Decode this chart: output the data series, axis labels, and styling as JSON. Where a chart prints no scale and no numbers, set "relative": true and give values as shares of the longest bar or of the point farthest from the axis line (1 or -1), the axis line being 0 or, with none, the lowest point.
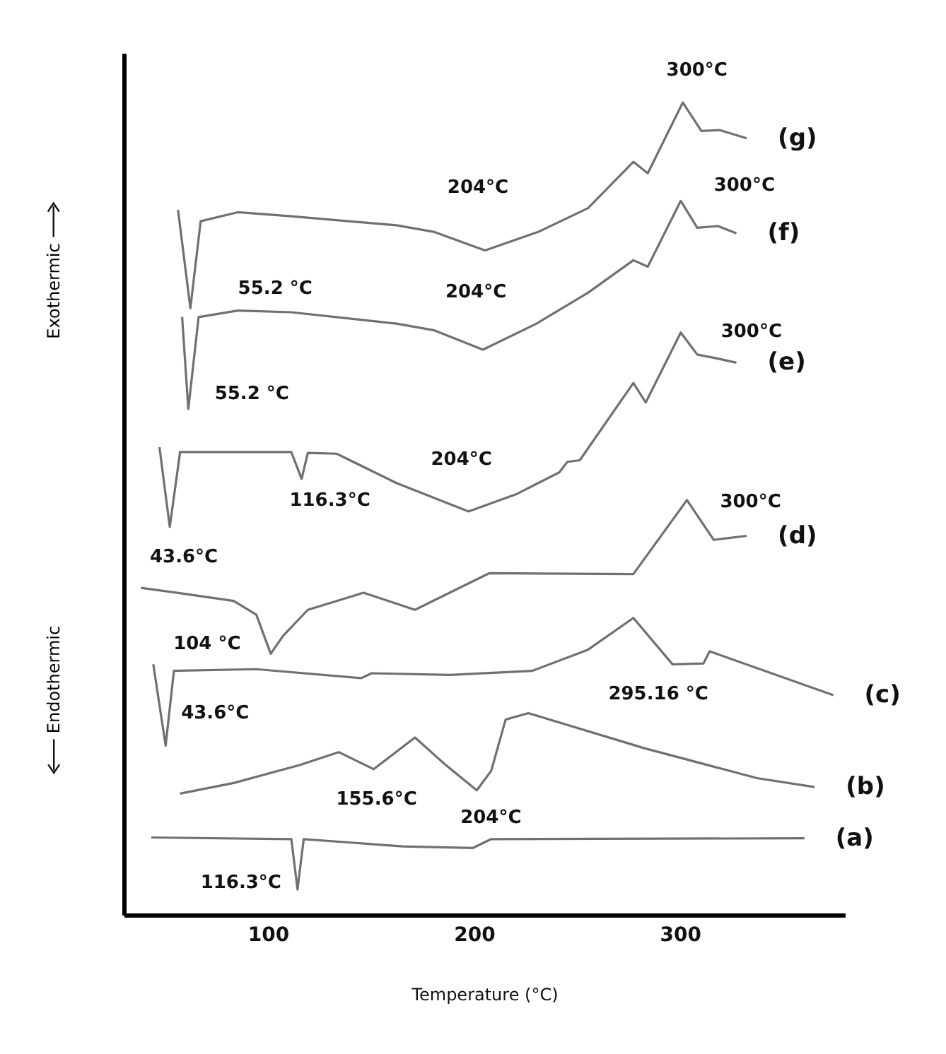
{
  "chart_data": {
    "type": "line",
    "relative": true,
    "xlabel": "Temperature (°C)",
    "xlim": [
      30,
      380
    ],
    "xticks": [
      100,
      200,
      300
    ],
    "tick_labels": "x",
    "grid": false,
    "legend": false,
    "line_style": "solid",
    "series": [
      {
        "name": "(g)",
        "color": "#707070",
        "x": [
          56,
          62,
          67,
          85,
          111,
          162,
          180,
          205,
          231,
          255,
          277,
          284,
          301,
          310,
          319,
          332
        ],
        "values": [
          0.868,
          0.747,
          0.854,
          0.865,
          0.86,
          0.849,
          0.841,
          0.818,
          0.841,
          0.87,
          0.927,
          0.913,
          1,
          0.965,
          0.966,
          0.956
        ]
      },
      {
        "name": "(f)",
        "color": "#707070",
        "x": [
          58,
          61,
          66,
          85,
          111,
          162,
          180,
          204,
          230,
          255,
          277,
          284,
          300,
          308,
          318,
          327
        ],
        "values": [
          0.736,
          0.623,
          0.736,
          0.744,
          0.742,
          0.728,
          0.72,
          0.696,
          0.728,
          0.766,
          0.806,
          0.798,
          0.879,
          0.846,
          0.848,
          0.839
        ]
      },
      {
        "name": "(e)",
        "color": "#707070",
        "x": [
          47,
          52,
          57,
          111,
          116,
          119,
          133,
          162,
          197,
          220,
          241,
          245,
          251,
          277,
          283,
          300,
          308,
          318,
          327
        ],
        "values": [
          0.576,
          0.478,
          0.57,
          0.57,
          0.537,
          0.569,
          0.568,
          0.532,
          0.497,
          0.518,
          0.545,
          0.558,
          0.56,
          0.655,
          0.631,
          0.717,
          0.69,
          0.685,
          0.68
        ]
      },
      {
        "name": "(d)",
        "color": "#707070",
        "x": [
          38,
          61,
          83,
          94,
          101,
          107,
          119,
          146,
          171,
          207,
          277,
          303,
          316,
          332
        ],
        "values": [
          0.403,
          0.395,
          0.387,
          0.37,
          0.322,
          0.344,
          0.376,
          0.397,
          0.376,
          0.421,
          0.42,
          0.511,
          0.462,
          0.467
        ]
      },
      {
        "name": "(c)",
        "color": "#707070",
        "x": [
          44,
          50,
          54,
          94,
          145,
          150,
          188,
          228,
          255,
          277,
          296,
          311,
          314,
          374
        ],
        "values": [
          0.309,
          0.209,
          0.301,
          0.303,
          0.292,
          0.298,
          0.296,
          0.301,
          0.327,
          0.366,
          0.309,
          0.31,
          0.325,
          0.271
        ]
      },
      {
        "name": "(b)",
        "color": "#707070",
        "x": [
          57,
          83,
          115,
          134,
          151,
          171,
          186,
          201,
          208,
          215,
          226,
          282,
          337,
          365
        ],
        "values": [
          0.15,
          0.163,
          0.185,
          0.201,
          0.18,
          0.219,
          0.185,
          0.154,
          0.178,
          0.241,
          0.249,
          0.206,
          0.169,
          0.158
        ]
      },
      {
        "name": "(a)",
        "color": "#707070",
        "x": [
          43,
          111,
          114,
          117,
          165,
          199,
          208,
          360
        ],
        "values": [
          0.096,
          0.094,
          0.032,
          0.094,
          0.085,
          0.083,
          0.094,
          0.095
        ]
      }
    ],
    "annotations": [
      "Exothermic",
      "Endothermic",
      {
        "text": "300°C",
        "x": 301,
        "y": 1
      },
      {
        "text": "204°C",
        "x": 205,
        "y": 0.818
      },
      {
        "text": "55.2 °C",
        "x": 62,
        "y": 0.747
      },
      {
        "text": "300°C",
        "x": 300,
        "y": 0.879
      },
      {
        "text": "204°C",
        "x": 204,
        "y": 0.696
      },
      {
        "text": "55.2 °C",
        "x": 61,
        "y": 0.623
      },
      {
        "text": "300°C",
        "x": 300,
        "y": 0.717
      },
      {
        "text": "116.3°C",
        "x": 116,
        "y": 0.537
      },
      {
        "text": "204°C",
        "x": 197,
        "y": 0.497
      },
      {
        "text": "43.6°C",
        "x": 52,
        "y": 0.478
      },
      {
        "text": "300°C",
        "x": 303,
        "y": 0.511
      },
      {
        "text": "104 °C",
        "x": 101,
        "y": 0.322
      },
      {
        "text": "295.16 °C",
        "x": 296,
        "y": 0.309
      },
      {
        "text": "43.6°C",
        "x": 50,
        "y": 0.209
      },
      {
        "text": "155.6°C",
        "x": 151,
        "y": 0.18
      },
      {
        "text": "204°C",
        "x": 201,
        "y": 0.154
      },
      {
        "text": "116.3°C",
        "x": 114,
        "y": 0.032
      }
    ]
  }
}
